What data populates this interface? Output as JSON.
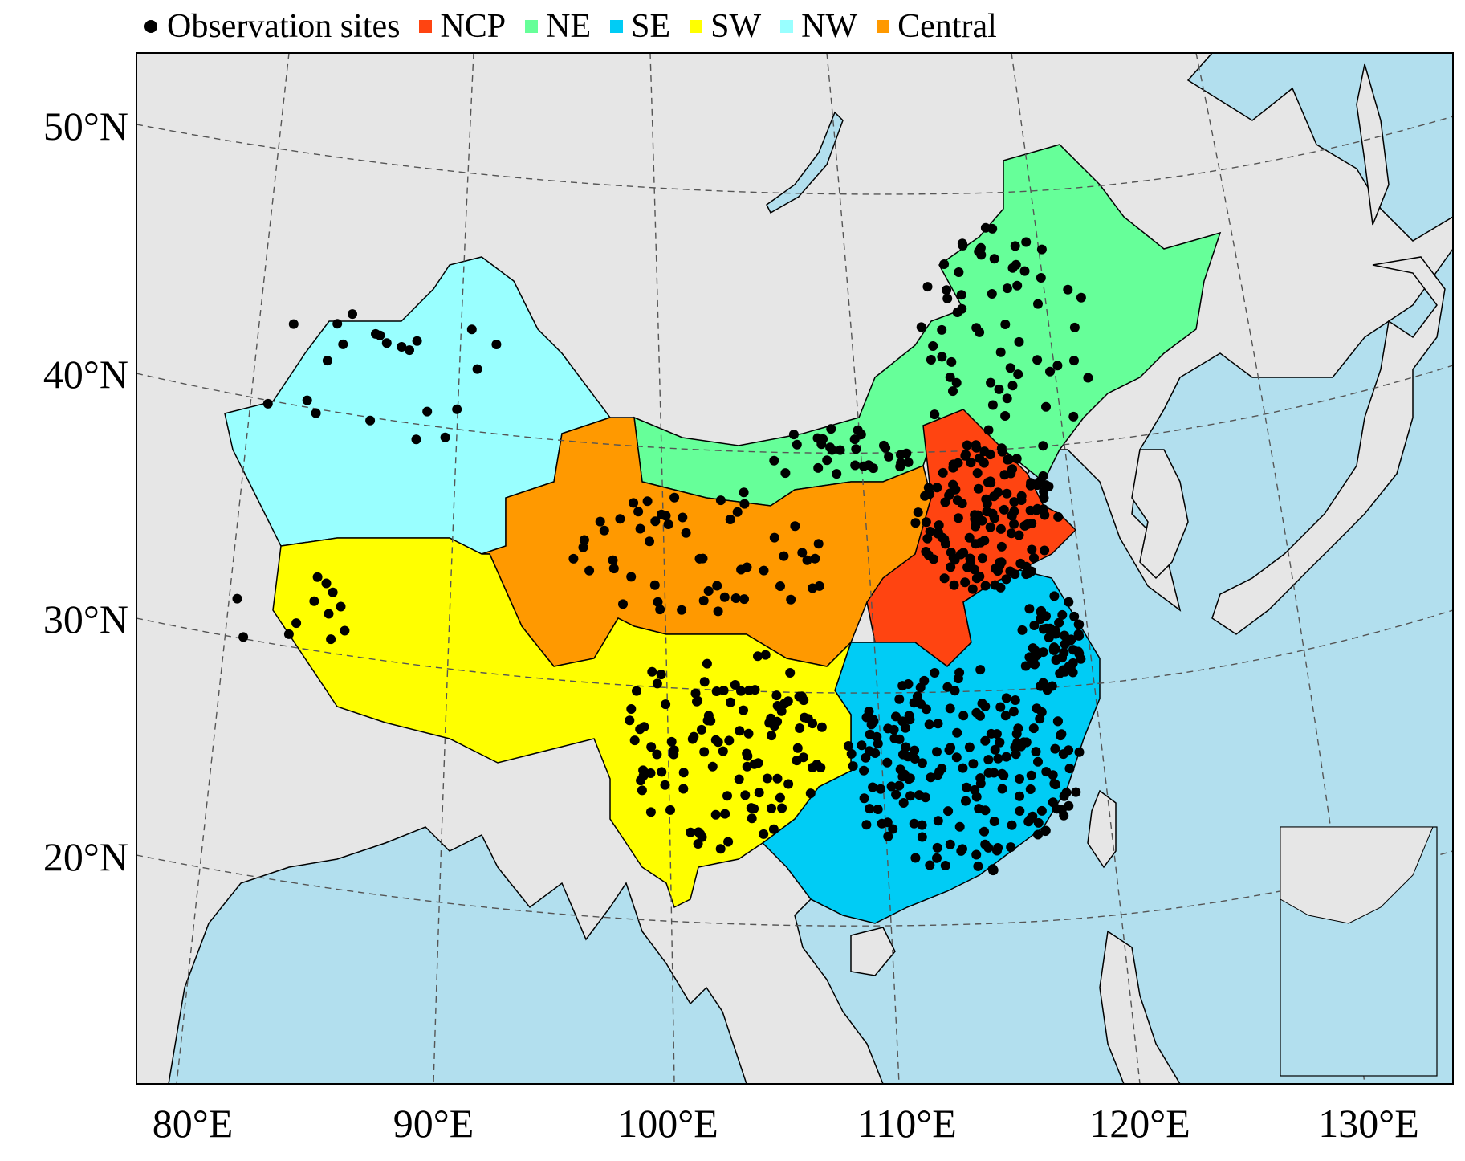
{
  "legend": {
    "observation_label": "Observation sites",
    "regions": [
      {
        "key": "ncp",
        "label": "NCP",
        "color": "#ff4411"
      },
      {
        "key": "ne",
        "label": "NE",
        "color": "#66ff99"
      },
      {
        "key": "se",
        "label": "SE",
        "color": "#00ccf5"
      },
      {
        "key": "sw",
        "label": "SW",
        "color": "#ffff00"
      },
      {
        "key": "nw",
        "label": "NW",
        "color": "#99ffff"
      },
      {
        "key": "central",
        "label": "Central",
        "color": "#ff9900"
      }
    ]
  },
  "axes": {
    "lat_labels": [
      "50°N",
      "40°N",
      "30°N",
      "20°N"
    ],
    "lon_labels": [
      "80°E",
      "90°E",
      "100°E",
      "110°E",
      "120°E",
      "130°E"
    ]
  },
  "colors": {
    "land": "#e6e6e6",
    "ocean": "#b2dfee",
    "graticule": "#555555"
  }
}
